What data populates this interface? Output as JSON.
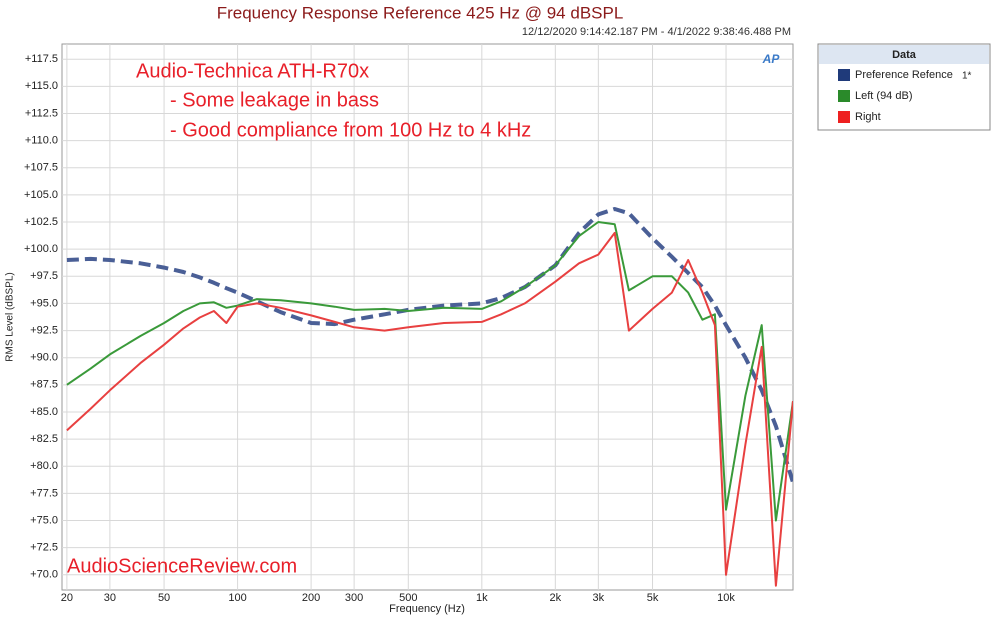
{
  "chart_data": {
    "type": "line",
    "title": "Frequency Response Reference 425 Hz @ 94 dBSPL",
    "subtitle": "12/12/2020 9:14:42.187 PM - 4/1/2022 9:38:46.488 PM",
    "x_label": "Frequency (Hz)",
    "y_label": "RMS Level (dBSPL)",
    "logo": "AP",
    "annotations": [
      "Audio-Technica ATH-R70x",
      "- Some leakage in bass",
      "- Good compliance from 100 Hz to 4 kHz",
      "AudioScienceReview.com"
    ],
    "legend_title": "Data",
    "legend_note": "1*",
    "log_x": true,
    "grid": true,
    "legend_position": "right",
    "x": [
      20,
      25,
      30,
      40,
      50,
      60,
      70,
      80,
      90,
      100,
      120,
      150,
      200,
      250,
      300,
      400,
      500,
      700,
      1000,
      1200,
      1500,
      2000,
      2500,
      3000,
      3500,
      4000,
      5000,
      6000,
      7000,
      8000,
      9000,
      10000,
      12000,
      14000,
      16000,
      18800
    ],
    "series": [
      {
        "name": "Preference Refence",
        "color": "#4a5f96",
        "legend_color": "#1f3a7a",
        "dashed": true,
        "values": [
          99.0,
          99.1,
          99.0,
          98.7,
          98.3,
          97.9,
          97.4,
          96.9,
          96.4,
          96.0,
          95.2,
          94.2,
          93.2,
          93.1,
          93.5,
          94.0,
          94.4,
          94.8,
          95.0,
          95.5,
          96.5,
          98.5,
          101.5,
          103.2,
          103.7,
          103.3,
          101.0,
          99.3,
          97.8,
          96.5,
          94.8,
          93.0,
          90.0,
          87.0,
          83.7,
          78.5
        ]
      },
      {
        "name": "Left (94 dB)",
        "color": "#3a9a3a",
        "legend_color": "#2a8a2a",
        "dashed": false,
        "values": [
          87.5,
          89.0,
          90.3,
          92.0,
          93.2,
          94.3,
          95.0,
          95.1,
          94.6,
          94.8,
          95.4,
          95.3,
          95.0,
          94.7,
          94.4,
          94.5,
          94.3,
          94.6,
          94.5,
          95.2,
          96.5,
          98.5,
          101.2,
          102.5,
          102.3,
          96.2,
          97.5,
          97.5,
          96.0,
          93.5,
          94.0,
          76.0,
          86.5,
          93.0,
          75.0,
          86.0
        ]
      },
      {
        "name": "Right",
        "color": "#e84040",
        "legend_color": "#ee2020",
        "dashed": false,
        "values": [
          83.3,
          85.3,
          87.0,
          89.5,
          91.2,
          92.7,
          93.7,
          94.3,
          93.2,
          94.7,
          95.0,
          94.6,
          93.9,
          93.3,
          92.8,
          92.5,
          92.8,
          93.2,
          93.3,
          94.0,
          95.0,
          97.0,
          98.7,
          99.5,
          101.5,
          92.5,
          94.5,
          96.0,
          99.0,
          96.0,
          93.0,
          70.0,
          82.0,
          91.0,
          69.0,
          86.0
        ]
      }
    ],
    "xlim": [
      19.1,
      18800
    ],
    "ylim": [
      68.6,
      118.9
    ],
    "xticks": [
      20,
      30,
      50,
      100,
      200,
      300,
      500,
      {
        "value": 1000,
        "label": "1k"
      },
      {
        "value": 2000,
        "label": "2k"
      },
      {
        "value": 3000,
        "label": "3k"
      },
      {
        "value": 5000,
        "label": "5k"
      },
      {
        "value": 10000,
        "label": "10k"
      }
    ],
    "yticks": [
      {
        "value": 70,
        "label": "+70.0"
      },
      {
        "value": 72.5,
        "label": "+72.5"
      },
      {
        "value": 75,
        "label": "+75.0"
      },
      {
        "value": 77.5,
        "label": "+77.5"
      },
      {
        "value": 80,
        "label": "+80.0"
      },
      {
        "value": 82.5,
        "label": "+82.5"
      },
      {
        "value": 85,
        "label": "+85.0"
      },
      {
        "value": 87.5,
        "label": "+87.5"
      },
      {
        "value": 90,
        "label": "+90.0"
      },
      {
        "value": 92.5,
        "label": "+92.5"
      },
      {
        "value": 95,
        "label": "+95.0"
      },
      {
        "value": 97.5,
        "label": "+97.5"
      },
      {
        "value": 100,
        "label": "+100.0"
      },
      {
        "value": 102.5,
        "label": "+102.5"
      },
      {
        "value": 105,
        "label": "+105.0"
      },
      {
        "value": 107.5,
        "label": "+107.5"
      },
      {
        "value": 110,
        "label": "+110.0"
      },
      {
        "value": 112.5,
        "label": "+112.5"
      },
      {
        "value": 115,
        "label": "+115.0"
      },
      {
        "value": 117.5,
        "label": "+117.5"
      }
    ]
  }
}
